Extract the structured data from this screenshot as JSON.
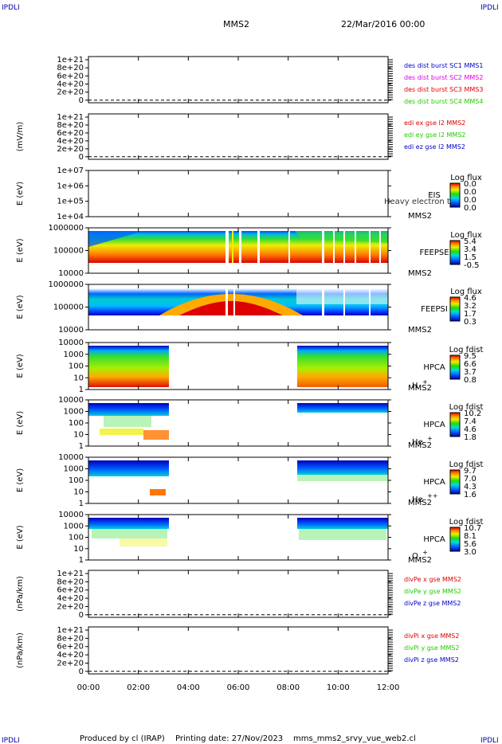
{
  "corner_label": "IPDLI",
  "header": {
    "spacecraft": "MMS2",
    "date": "22/Mar/2016 00:00"
  },
  "footer": {
    "produced_by": "Produced by cl (IRAP)",
    "printing_date": "Printing date: 27/Nov/2023",
    "filename": "mms_mms2_srvy_vue_web2.cl"
  },
  "colors": {
    "red": "#dd0000",
    "magenta": "#dd00dd",
    "green": "#22cc00",
    "blue": "#0000cc"
  },
  "time_axis": {
    "ticks": [
      "00:00",
      "02:00",
      "04:00",
      "06:00",
      "08:00",
      "10:00",
      "12:00"
    ],
    "range_hours": [
      0,
      12
    ]
  },
  "panels": [
    {
      "id": "des-dist-burst",
      "ylabel": "",
      "type": "line",
      "yticks": [
        "1e+21",
        "8e+20",
        "6e+20",
        "4e+20",
        "2e+20",
        "0"
      ],
      "legend": [
        {
          "text": "des dist burst SC1 MMS1",
          "color": "#0000cc"
        },
        {
          "text": "des dist burst SC2 MMS2",
          "color": "#dd00dd"
        },
        {
          "text": "des dist burst SC3 MMS3",
          "color": "#dd0000"
        },
        {
          "text": "des dist burst SC4 MMS4",
          "color": "#22cc00"
        }
      ]
    },
    {
      "id": "edi-e-gse",
      "ylabel": "(mV/m)",
      "type": "line",
      "yticks": [
        "1e+21",
        "8e+20",
        "6e+20",
        "4e+20",
        "2e+20",
        "0"
      ],
      "legend": [
        {
          "text": "edi ex gse l2 MMS2",
          "color": "#dd0000"
        },
        {
          "text": "edi ey gse l2 MMS2",
          "color": "#22cc00"
        },
        {
          "text": "edi ez gse l2 MMS2",
          "color": "#0000cc"
        }
      ]
    },
    {
      "id": "eis",
      "ylabel": "E (eV)",
      "type": "spectrogram",
      "yticks": [
        "1e+07",
        "1e+06",
        "1e+05",
        "1e+04"
      ],
      "instrument": [
        "EIS",
        "MMS2"
      ],
      "overlay_text": "Heavy electron to",
      "cbar_title": "Log flux",
      "cbar_ticks": [
        "0.0",
        "0.0",
        "0.0",
        "0.0"
      ]
    },
    {
      "id": "feepse",
      "ylabel": "E (eV)",
      "type": "spectrogram",
      "yticks": [
        "1000000",
        "100000",
        "10000"
      ],
      "instrument": [
        "FEEPSE",
        "MMS2"
      ],
      "cbar_title": "Log flux",
      "cbar_ticks": [
        "5.4",
        "3.4",
        "1.5",
        "-0.5"
      ]
    },
    {
      "id": "feepsi",
      "ylabel": "E (eV)",
      "type": "spectrogram",
      "yticks": [
        "1000000",
        "100000",
        "10000"
      ],
      "instrument": [
        "FEEPSI",
        "MMS2"
      ],
      "cbar_title": "Log flux",
      "cbar_ticks": [
        "4.6",
        "3.2",
        "1.7",
        "0.3"
      ]
    },
    {
      "id": "hpca-h",
      "ylabel": "E (eV)",
      "type": "spectrogram",
      "yticks": [
        "10000",
        "1000",
        "100",
        "10",
        "1"
      ],
      "instrument": [
        "HPCA",
        "MMS2"
      ],
      "species": "H",
      "charge": "+",
      "cbar_title": "Log fdist",
      "cbar_ticks": [
        "9.5",
        "6.6",
        "3.7",
        "0.8"
      ]
    },
    {
      "id": "hpca-he",
      "ylabel": "E (eV)",
      "type": "spectrogram",
      "yticks": [
        "10000",
        "1000",
        "100",
        "10",
        "1"
      ],
      "instrument": [
        "HPCA",
        "MMS2"
      ],
      "species": "He",
      "charge": "+",
      "cbar_title": "Log fdist",
      "cbar_ticks": [
        "10.2",
        "7.4",
        "4.6",
        "1.8"
      ]
    },
    {
      "id": "hpca-he2",
      "ylabel": "E (eV)",
      "type": "spectrogram",
      "yticks": [
        "10000",
        "1000",
        "100",
        "10",
        "1"
      ],
      "instrument": [
        "HPCA",
        "MMS2"
      ],
      "species": "He",
      "charge": "++",
      "cbar_title": "Log fdist",
      "cbar_ticks": [
        "9.7",
        "7.0",
        "4.3",
        "1.6"
      ]
    },
    {
      "id": "hpca-o",
      "ylabel": "E (eV)",
      "type": "spectrogram",
      "yticks": [
        "10000",
        "1000",
        "100",
        "10",
        "1"
      ],
      "instrument": [
        "HPCA",
        "MMS2"
      ],
      "species": "O",
      "charge": "+",
      "cbar_title": "Log fdist",
      "cbar_ticks": [
        "10.7",
        "8.1",
        "5.6",
        "3.0"
      ]
    },
    {
      "id": "divpe",
      "ylabel": "(nPa/km)",
      "type": "line",
      "yticks": [
        "1e+21",
        "8e+20",
        "6e+20",
        "4e+20",
        "2e+20",
        "0"
      ],
      "legend": [
        {
          "text": "divPe x gse MMS2",
          "color": "#dd0000"
        },
        {
          "text": "divPe y gse MMS2",
          "color": "#22cc00"
        },
        {
          "text": "divPe z gse MMS2",
          "color": "#0000cc"
        }
      ]
    },
    {
      "id": "divpi",
      "ylabel": "(nPa/km)",
      "type": "line",
      "yticks": [
        "1e+21",
        "8e+20",
        "6e+20",
        "4e+20",
        "2e+20",
        "0"
      ],
      "legend": [
        {
          "text": "divPi x gse MMS2",
          "color": "#dd0000"
        },
        {
          "text": "divPi y gse MMS2",
          "color": "#22cc00"
        },
        {
          "text": "divPi z gse MMS2",
          "color": "#0000cc"
        }
      ]
    }
  ],
  "chart_data": {
    "type": "heatmap",
    "title": "MMS2",
    "x_unit": "hours (UT) from 22/Mar/2016 00:00",
    "data_gap_hours": [
      3.2,
      8.4
    ],
    "series": [
      {
        "name": "FEEPSE",
        "coverage_hours": [
          0,
          12
        ],
        "peak_log_flux": 5.4
      },
      {
        "name": "FEEPSI",
        "coverage_hours": [
          0,
          12
        ],
        "peak_log_flux": 4.6
      },
      {
        "name": "HPCA H+",
        "coverage_hours": [
          [
            0,
            3.2
          ],
          [
            8.4,
            12
          ]
        ],
        "peak_log_fdist": 9.5
      },
      {
        "name": "HPCA He+",
        "coverage_hours": [
          [
            0,
            3.2
          ],
          [
            8.4,
            12
          ]
        ],
        "peak_log_fdist": 10.2
      },
      {
        "name": "HPCA He++",
        "coverage_hours": [
          [
            0,
            3.2
          ],
          [
            8.4,
            12
          ]
        ],
        "peak_log_fdist": 9.7
      },
      {
        "name": "HPCA O+",
        "coverage_hours": [
          [
            0,
            3.2
          ],
          [
            8.4,
            12
          ]
        ],
        "peak_log_fdist": 10.7
      }
    ]
  }
}
